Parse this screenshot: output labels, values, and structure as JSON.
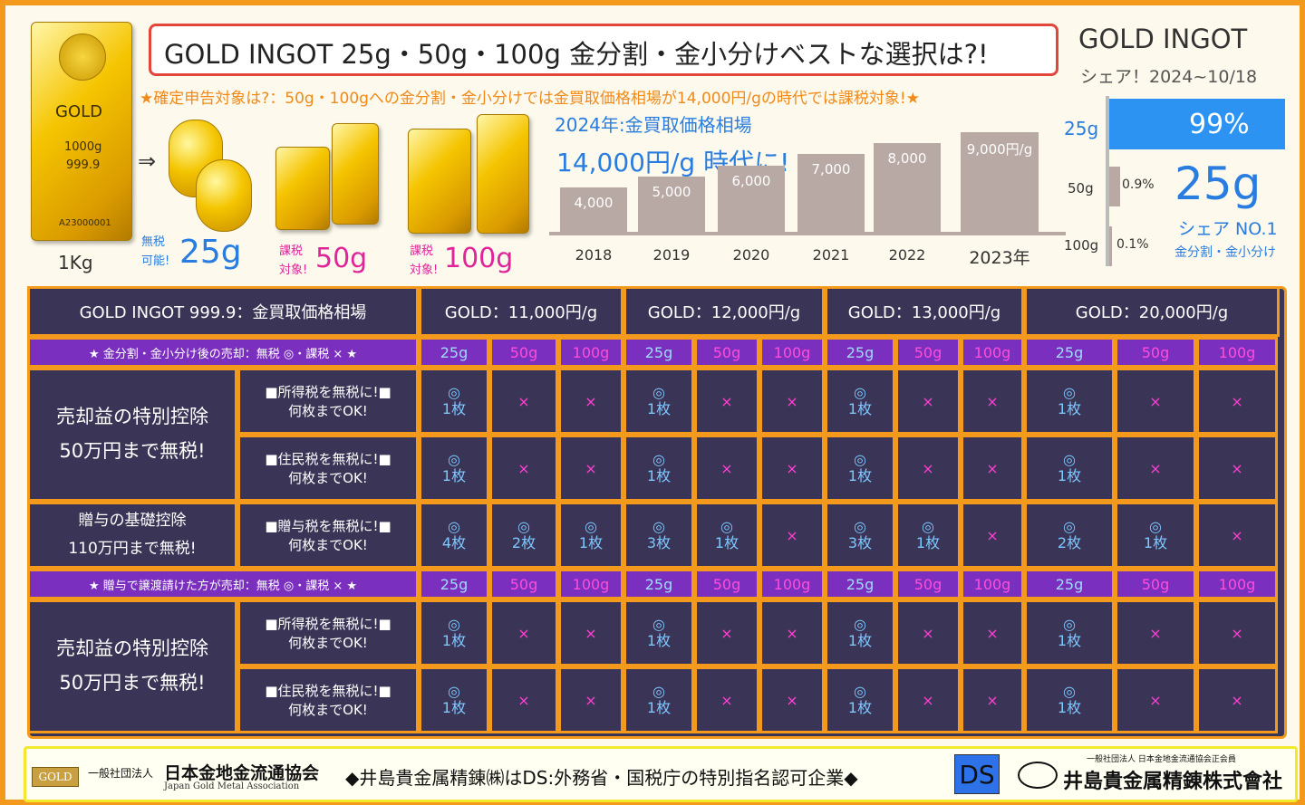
{
  "title": "GOLD INGOT 25g・50g・100g 金分割・金小分けベストな選択は?!",
  "subtitle": "★確定申告対象は?：50g・100gへの金分割・金小分けでは金買取価格相場が14,000円/gの時代では課税対象!★",
  "share": {
    "heading": "GOLD INGOT",
    "sub": "シェア！2024~10/18",
    "rows": [
      {
        "label": "25g",
        "pct": "99%",
        "value": 99
      },
      {
        "label": "50g",
        "pct": "0.9%",
        "value": 0.9
      },
      {
        "label": "100g",
        "pct": "0.1%",
        "value": 0.1
      }
    ],
    "big": "25g",
    "no1": "シェア NO.1",
    "no1_sub": "金分割・金小分け"
  },
  "bars": {
    "kg_label": "1Kg",
    "bar1_texts": [
      "GOLD",
      "1000g",
      "999.9",
      "A23000001"
    ],
    "coin_label_pre": "無税\n可能!",
    "coin_label": "25g",
    "b50_pre": "課税\n対象!",
    "b50": "50g",
    "b100_pre": "課税\n対象!",
    "b100": "100g",
    "arrow": "⇒"
  },
  "chart_data": {
    "type": "bar",
    "title": "2024年:金買取価格相場",
    "subtitle": "14,000円/g 時代に!",
    "categories": [
      "2018",
      "2019",
      "2020",
      "2021",
      "2022",
      "2023年"
    ],
    "values": [
      4000,
      5000,
      6000,
      7000,
      8000,
      9000
    ],
    "value_labels": [
      "4,000",
      "5,000",
      "6,000",
      "7,000",
      "8,000",
      "9,000円/g"
    ],
    "ylim": [
      0,
      9000
    ]
  },
  "table": {
    "head_label": "GOLD INGOT 999.9：金買取価格相場",
    "prices": [
      "GOLD：11,000円/g",
      "GOLD：12,000円/g",
      "GOLD：13,000円/g",
      "GOLD：20,000円/g"
    ],
    "row1_label": "★ 金分割・金小分け後の売却：無税 ◎・課税 × ★",
    "row2_label": "★ 贈与で譲渡請けた方が売却：無税 ◎・課税 × ★",
    "weights": [
      "25g",
      "50g",
      "100g"
    ],
    "sec1_title": "売却益の特別控除\n50万円まで無税!",
    "sec2_title": "贈与の基礎控除\n110万円まで無税!",
    "sec3_title": "売却益の特別控除\n50万円まで無税!",
    "income": "■所得税を無税に!■\n何枚までOK!",
    "resident": "■住民税を無税に!■\n何枚までOK!",
    "gift": "■贈与税を無税に!■\n何枚までOK!",
    "o": "◎",
    "x": "×",
    "one": "1枚",
    "gift_vals": [
      [
        "4枚",
        "2枚",
        "1枚"
      ],
      [
        "3枚",
        "1枚",
        ""
      ],
      [
        "3枚",
        "1枚",
        ""
      ],
      [
        "2枚",
        "1枚",
        ""
      ]
    ]
  },
  "footer": {
    "assoc_small": "一般社団法人",
    "assoc": "日本金地金流通協会",
    "assoc_en": "Japan Gold Metal Association",
    "gold_badge": "GOLD",
    "middle": "◆井島貴金属精錬㈱はDS:外務省・国税庁の特別指名認可企業◆",
    "ds": "DS",
    "company_small": "一般社団法人 日本金地金流通協会正会員",
    "company": "井島貴金属精錬株式會社"
  }
}
